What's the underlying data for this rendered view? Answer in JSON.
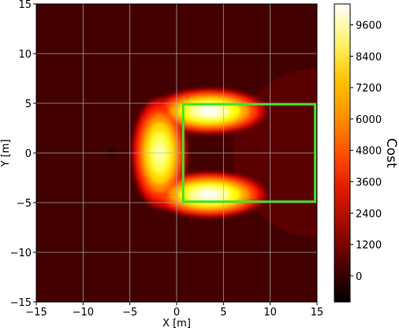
{
  "chart_data": {
    "type": "heatmap",
    "xlabel": "X [m]",
    "ylabel": "Y [m]",
    "xlim": [
      -15,
      15
    ],
    "ylim": [
      -15,
      15
    ],
    "x_ticks": [
      "−15",
      "−10",
      "−5",
      "0",
      "5",
      "10",
      "15"
    ],
    "y_ticks": [
      "15",
      "10",
      "5",
      "0",
      "−5",
      "−10",
      "−15"
    ],
    "grid": true,
    "colormap": "hot",
    "colorbar": {
      "label": "Cost",
      "min": -1000,
      "max": 10400,
      "ticks": [
        "9600",
        "8400",
        "7200",
        "6000",
        "4800",
        "3600",
        "2400",
        "1200",
        "0"
      ],
      "tick_values": [
        9600,
        8400,
        7200,
        6000,
        4800,
        3600,
        2400,
        1200,
        0
      ]
    },
    "cost_field": {
      "background_cost": 300,
      "outer_ring_cost": 1000,
      "dark_spot": {
        "x": -7,
        "y": 0,
        "cost": -500
      },
      "high_cost_lobes": [
        {
          "x": 3.5,
          "y": 4.2,
          "peak_cost": 10400
        },
        {
          "x": -1.8,
          "y": 0,
          "peak_cost": 9600
        },
        {
          "x": 3.5,
          "y": -4.2,
          "peak_cost": 10400
        }
      ]
    },
    "highlight_box": {
      "x_min": 0.7,
      "x_max": 14.8,
      "y_min": -4.9,
      "y_max": 4.9,
      "color": "#44e02a"
    }
  }
}
